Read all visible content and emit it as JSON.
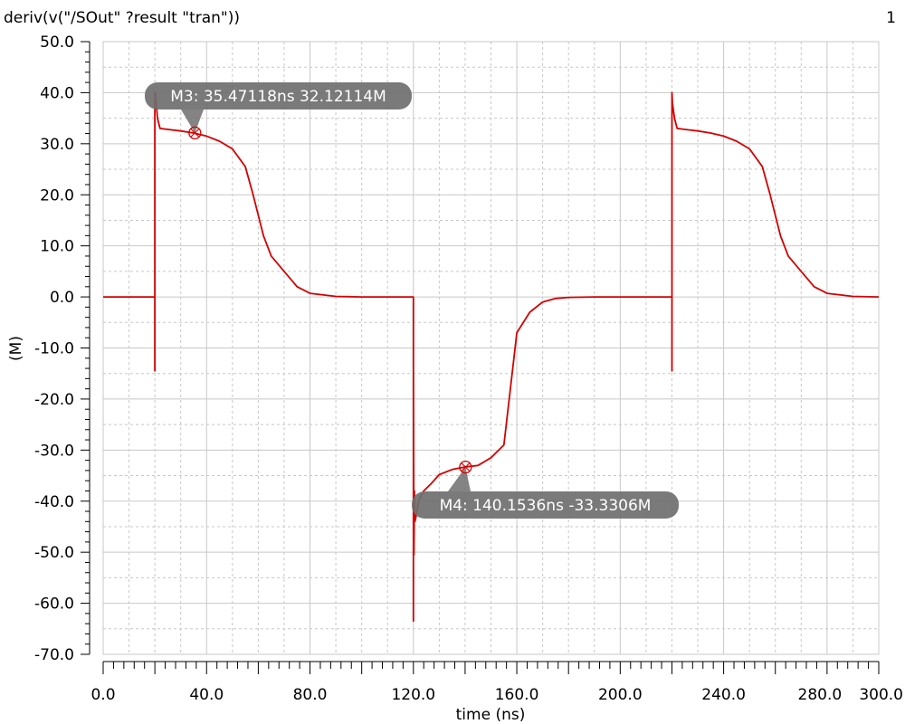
{
  "window": {
    "expression": "deriv(v(\"/SOut\" ?result \"tran\"))",
    "plot_index": "1"
  },
  "colors": {
    "trace": "#d40000",
    "grid": "#c8c8c8",
    "marker_label_bg": "#6f6f6f",
    "marker_label_text": "#ffffff"
  },
  "chart_data": {
    "type": "line",
    "xlabel": "time (ns)",
    "ylabel": "(M)",
    "xlim": [
      0,
      300
    ],
    "ylim": [
      -70,
      50
    ],
    "x_ticks": [
      "0.0",
      "40.0",
      "80.0",
      "120.0",
      "160.0",
      "200.0",
      "240.0",
      "280.0",
      "300.0"
    ],
    "x_tick_values": [
      0,
      40,
      80,
      120,
      160,
      200,
      240,
      280,
      300
    ],
    "y_ticks": [
      "50.0",
      "40.0",
      "30.0",
      "20.0",
      "10.0",
      "0.0",
      "-10.0",
      "-20.0",
      "-30.0",
      "-40.0",
      "-50.0",
      "-60.0",
      "-70.0"
    ],
    "y_tick_values": [
      50,
      40,
      30,
      20,
      10,
      0,
      -10,
      -20,
      -30,
      -40,
      -50,
      -60,
      -70
    ],
    "grid": true,
    "series": [
      {
        "color": "#d40000",
        "x": [
          0,
          20,
          20,
          20,
          20.2,
          21,
          22,
          25,
          30,
          35,
          40,
          45,
          50,
          55,
          58,
          62,
          65,
          70,
          75,
          80,
          90,
          100,
          110,
          120,
          120,
          120,
          120.2,
          120.4,
          120.6,
          121,
          122,
          124,
          127,
          130,
          135,
          140,
          145,
          150,
          155,
          160,
          165,
          170,
          175,
          180,
          190,
          200,
          210,
          220,
          220,
          220,
          220.2,
          221,
          222,
          225,
          230,
          235,
          240,
          245,
          250,
          255,
          258,
          262,
          265,
          270,
          275,
          280,
          290,
          300
        ],
        "y": [
          0,
          0,
          -14.5,
          40,
          40,
          35,
          33,
          32.8,
          32.5,
          32.1,
          31.5,
          30.5,
          29,
          25.5,
          20,
          12,
          8,
          5,
          2,
          0.7,
          0.1,
          0,
          0,
          0,
          -63.5,
          -13.5,
          -50.5,
          -38,
          -44,
          -43,
          -40,
          -38,
          -36.5,
          -34.8,
          -33.8,
          -33.3,
          -33,
          -31.5,
          -29,
          -7,
          -3,
          -1,
          -0.3,
          -0.1,
          0,
          0,
          0,
          0,
          -14.5,
          40,
          38,
          35,
          33,
          32.8,
          32.5,
          32.1,
          31.5,
          30.5,
          29,
          25.5,
          20,
          12,
          8,
          5,
          2,
          0.7,
          0.1,
          0
        ]
      }
    ],
    "markers": [
      {
        "label": "M3: 35.47118ns 32.12114M",
        "x": 35.47118,
        "y": 32.12114
      },
      {
        "label": "M4: 140.1536ns -33.3306M",
        "x": 140.1536,
        "y": -33.3306
      }
    ]
  }
}
